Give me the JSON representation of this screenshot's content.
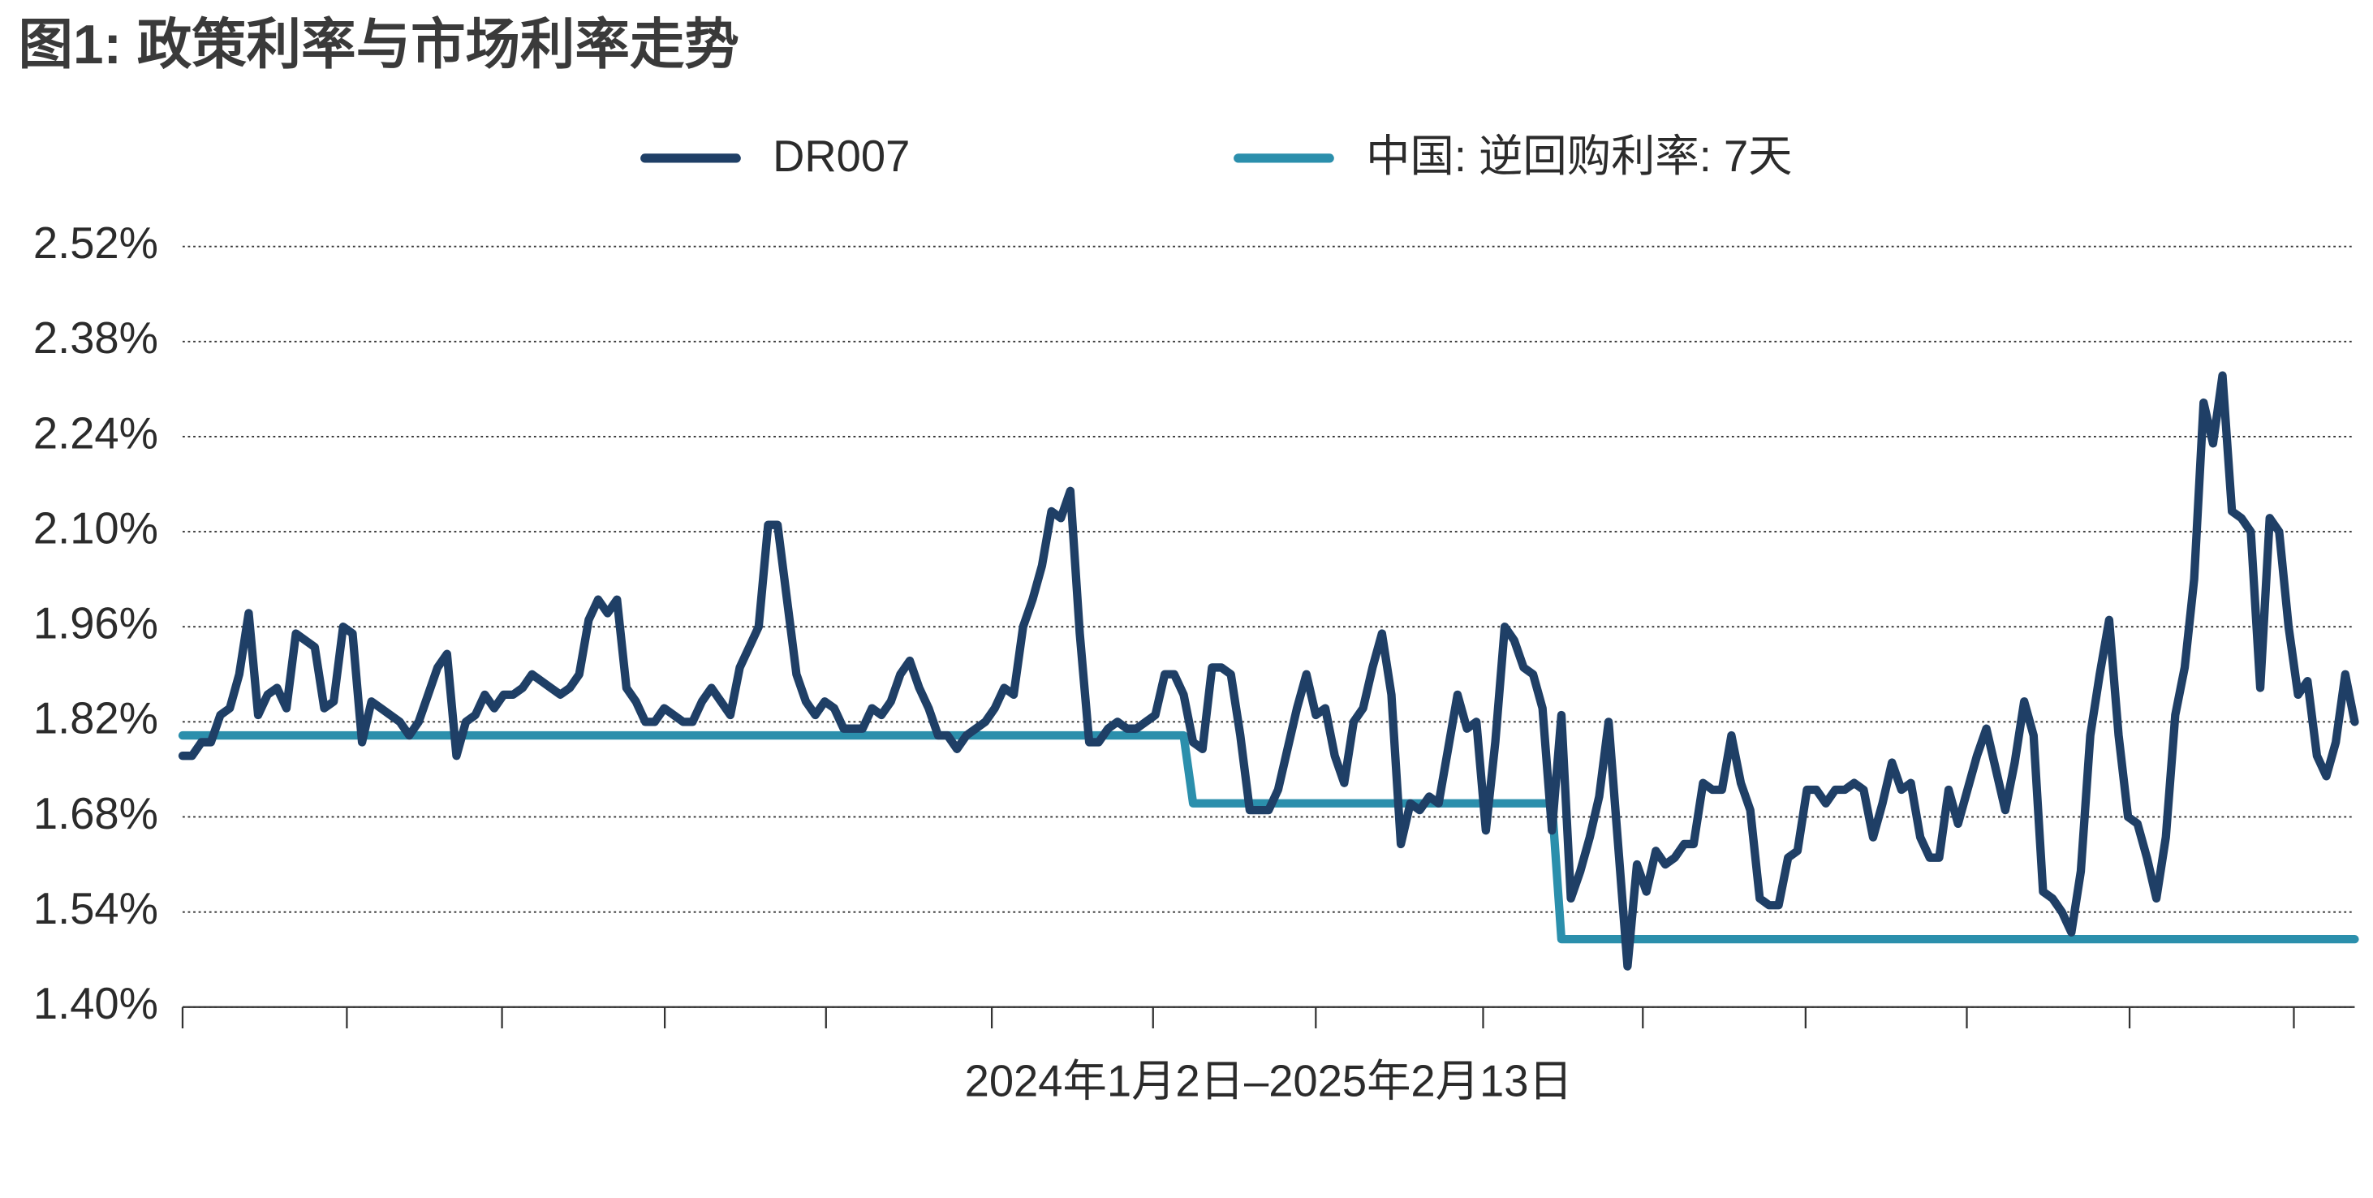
{
  "chart_data": {
    "type": "line",
    "title": "图1: 政策利率与市场利率走势",
    "xlabel": "2024年1月2日–2025年2月13日",
    "ylim": [
      1.4,
      2.52
    ],
    "yticks": [
      {
        "value": 1.4,
        "label": "1.40%"
      },
      {
        "value": 1.54,
        "label": "1.54%"
      },
      {
        "value": 1.68,
        "label": "1.68%"
      },
      {
        "value": 1.82,
        "label": "1.82%"
      },
      {
        "value": 1.96,
        "label": "1.96%"
      },
      {
        "value": 2.1,
        "label": "2.10%"
      },
      {
        "value": 2.24,
        "label": "2.24%"
      },
      {
        "value": 2.38,
        "label": "2.38%"
      },
      {
        "value": 2.52,
        "label": "2.52%"
      }
    ],
    "grid": true,
    "legend": "top",
    "series": [
      {
        "name": "DR007",
        "color": "#1f3f66",
        "values": [
          1.77,
          1.77,
          1.79,
          1.79,
          1.83,
          1.84,
          1.89,
          1.98,
          1.83,
          1.86,
          1.87,
          1.84,
          1.95,
          1.94,
          1.93,
          1.84,
          1.85,
          1.96,
          1.95,
          1.79,
          1.85,
          1.84,
          1.83,
          1.82,
          1.8,
          1.82,
          1.86,
          1.9,
          1.92,
          1.77,
          1.82,
          1.83,
          1.86,
          1.84,
          1.86,
          1.86,
          1.87,
          1.89,
          1.88,
          1.87,
          1.86,
          1.87,
          1.89,
          1.97,
          2.0,
          1.98,
          2.0,
          1.87,
          1.85,
          1.82,
          1.82,
          1.84,
          1.83,
          1.82,
          1.82,
          1.85,
          1.87,
          1.85,
          1.83,
          1.9,
          1.93,
          1.96,
          2.11,
          2.11,
          2.0,
          1.89,
          1.85,
          1.83,
          1.85,
          1.84,
          1.81,
          1.81,
          1.81,
          1.84,
          1.83,
          1.85,
          1.89,
          1.91,
          1.87,
          1.84,
          1.8,
          1.8,
          1.78,
          1.8,
          1.81,
          1.82,
          1.84,
          1.87,
          1.86,
          1.96,
          2.0,
          2.05,
          2.13,
          2.12,
          2.16,
          1.95,
          1.79,
          1.79,
          1.81,
          1.82,
          1.81,
          1.81,
          1.82,
          1.83,
          1.89,
          1.89,
          1.86,
          1.79,
          1.78,
          1.9,
          1.9,
          1.89,
          1.8,
          1.69,
          1.69,
          1.69,
          1.72,
          1.78,
          1.84,
          1.89,
          1.83,
          1.84,
          1.77,
          1.73,
          1.82,
          1.84,
          1.9,
          1.95,
          1.86,
          1.64,
          1.7,
          1.69,
          1.71,
          1.7,
          1.78,
          1.86,
          1.81,
          1.82,
          1.66,
          1.79,
          1.96,
          1.94,
          1.9,
          1.89,
          1.84,
          1.66,
          1.83,
          1.56,
          1.6,
          1.65,
          1.71,
          1.82,
          1.64,
          1.46,
          1.61,
          1.57,
          1.63,
          1.61,
          1.62,
          1.64,
          1.64,
          1.73,
          1.72,
          1.72,
          1.8,
          1.73,
          1.69,
          1.56,
          1.55,
          1.55,
          1.62,
          1.63,
          1.72,
          1.72,
          1.7,
          1.72,
          1.72,
          1.73,
          1.72,
          1.65,
          1.7,
          1.76,
          1.72,
          1.73,
          1.65,
          1.62,
          1.62,
          1.72,
          1.67,
          1.72,
          1.77,
          1.81,
          1.75,
          1.69,
          1.76,
          1.85,
          1.8,
          1.57,
          1.56,
          1.54,
          1.51,
          1.6,
          1.8,
          1.89,
          1.97,
          1.8,
          1.68,
          1.67,
          1.62,
          1.56,
          1.65,
          1.83,
          1.9,
          2.03,
          2.29,
          2.23,
          2.33,
          2.13,
          2.12,
          2.1,
          1.87,
          2.12,
          2.1,
          1.96,
          1.86,
          1.88,
          1.77,
          1.74,
          1.79,
          1.89,
          1.82
        ]
      },
      {
        "name": "中国: 逆回购利率: 7天",
        "color": "#2b8fac",
        "values": [
          1.8,
          1.8,
          1.8,
          1.8,
          1.8,
          1.8,
          1.8,
          1.8,
          1.8,
          1.8,
          1.8,
          1.8,
          1.8,
          1.8,
          1.8,
          1.8,
          1.8,
          1.8,
          1.8,
          1.8,
          1.8,
          1.8,
          1.8,
          1.8,
          1.8,
          1.8,
          1.8,
          1.8,
          1.8,
          1.8,
          1.8,
          1.8,
          1.8,
          1.8,
          1.8,
          1.8,
          1.8,
          1.8,
          1.8,
          1.8,
          1.8,
          1.8,
          1.8,
          1.8,
          1.8,
          1.8,
          1.8,
          1.8,
          1.8,
          1.8,
          1.8,
          1.8,
          1.8,
          1.8,
          1.8,
          1.8,
          1.8,
          1.8,
          1.8,
          1.8,
          1.8,
          1.8,
          1.8,
          1.8,
          1.8,
          1.8,
          1.8,
          1.8,
          1.8,
          1.8,
          1.8,
          1.8,
          1.8,
          1.8,
          1.8,
          1.8,
          1.8,
          1.8,
          1.8,
          1.8,
          1.8,
          1.8,
          1.8,
          1.8,
          1.8,
          1.8,
          1.8,
          1.8,
          1.8,
          1.8,
          1.8,
          1.8,
          1.8,
          1.8,
          1.8,
          1.8,
          1.8,
          1.8,
          1.8,
          1.8,
          1.8,
          1.8,
          1.8,
          1.8,
          1.8,
          1.8,
          1.8,
          1.7,
          1.7,
          1.7,
          1.7,
          1.7,
          1.7,
          1.7,
          1.7,
          1.7,
          1.7,
          1.7,
          1.7,
          1.7,
          1.7,
          1.7,
          1.7,
          1.7,
          1.7,
          1.7,
          1.7,
          1.7,
          1.7,
          1.7,
          1.7,
          1.7,
          1.7,
          1.7,
          1.7,
          1.7,
          1.7,
          1.7,
          1.7,
          1.7,
          1.7,
          1.7,
          1.7,
          1.7,
          1.7,
          1.7,
          1.5,
          1.5,
          1.5,
          1.5,
          1.5,
          1.5,
          1.5,
          1.5,
          1.5,
          1.5,
          1.5,
          1.5,
          1.5,
          1.5,
          1.5,
          1.5,
          1.5,
          1.5,
          1.5,
          1.5,
          1.5,
          1.5,
          1.5,
          1.5,
          1.5,
          1.5,
          1.5,
          1.5,
          1.5,
          1.5,
          1.5,
          1.5,
          1.5,
          1.5,
          1.5,
          1.5,
          1.5,
          1.5,
          1.5,
          1.5,
          1.5,
          1.5,
          1.5,
          1.5,
          1.5,
          1.5,
          1.5,
          1.5,
          1.5,
          1.5,
          1.5,
          1.5,
          1.5,
          1.5,
          1.5,
          1.5,
          1.5,
          1.5,
          1.5,
          1.5,
          1.5,
          1.5,
          1.5,
          1.5,
          1.5,
          1.5,
          1.5,
          1.5,
          1.5,
          1.5,
          1.5,
          1.5,
          1.5,
          1.5,
          1.5,
          1.5,
          1.5,
          1.5,
          1.5,
          1.5,
          1.5,
          1.5,
          1.5,
          1.5,
          1.5
        ]
      }
    ]
  }
}
